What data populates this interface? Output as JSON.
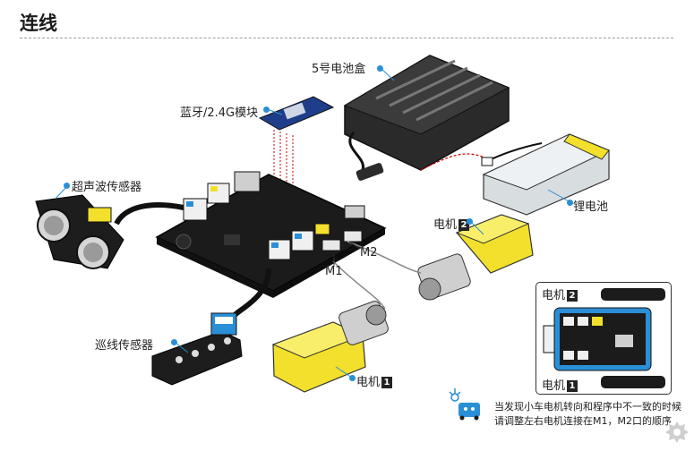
{
  "page": {
    "title": "连线"
  },
  "labels": {
    "battery_box": "5号电池盒",
    "bluetooth": "蓝牙/2.4G模块",
    "ultrasonic": "超声波传感器",
    "lithium": "锂电池",
    "motor": "电机",
    "motor2_num": "2",
    "motor1_num": "1",
    "line_sensor": "巡线传感器",
    "port_m1": "M1",
    "port_m2": "M2"
  },
  "note": {
    "line1": "当发现小车电机转向和程序中不一致的时候",
    "line2": "请调整左右电机连接在M1，M2口的顺序"
  },
  "colors": {
    "accent_blue": "#2a8fd6",
    "motor_yellow": "#f2e02c",
    "board_black": "#1b1b1b"
  }
}
